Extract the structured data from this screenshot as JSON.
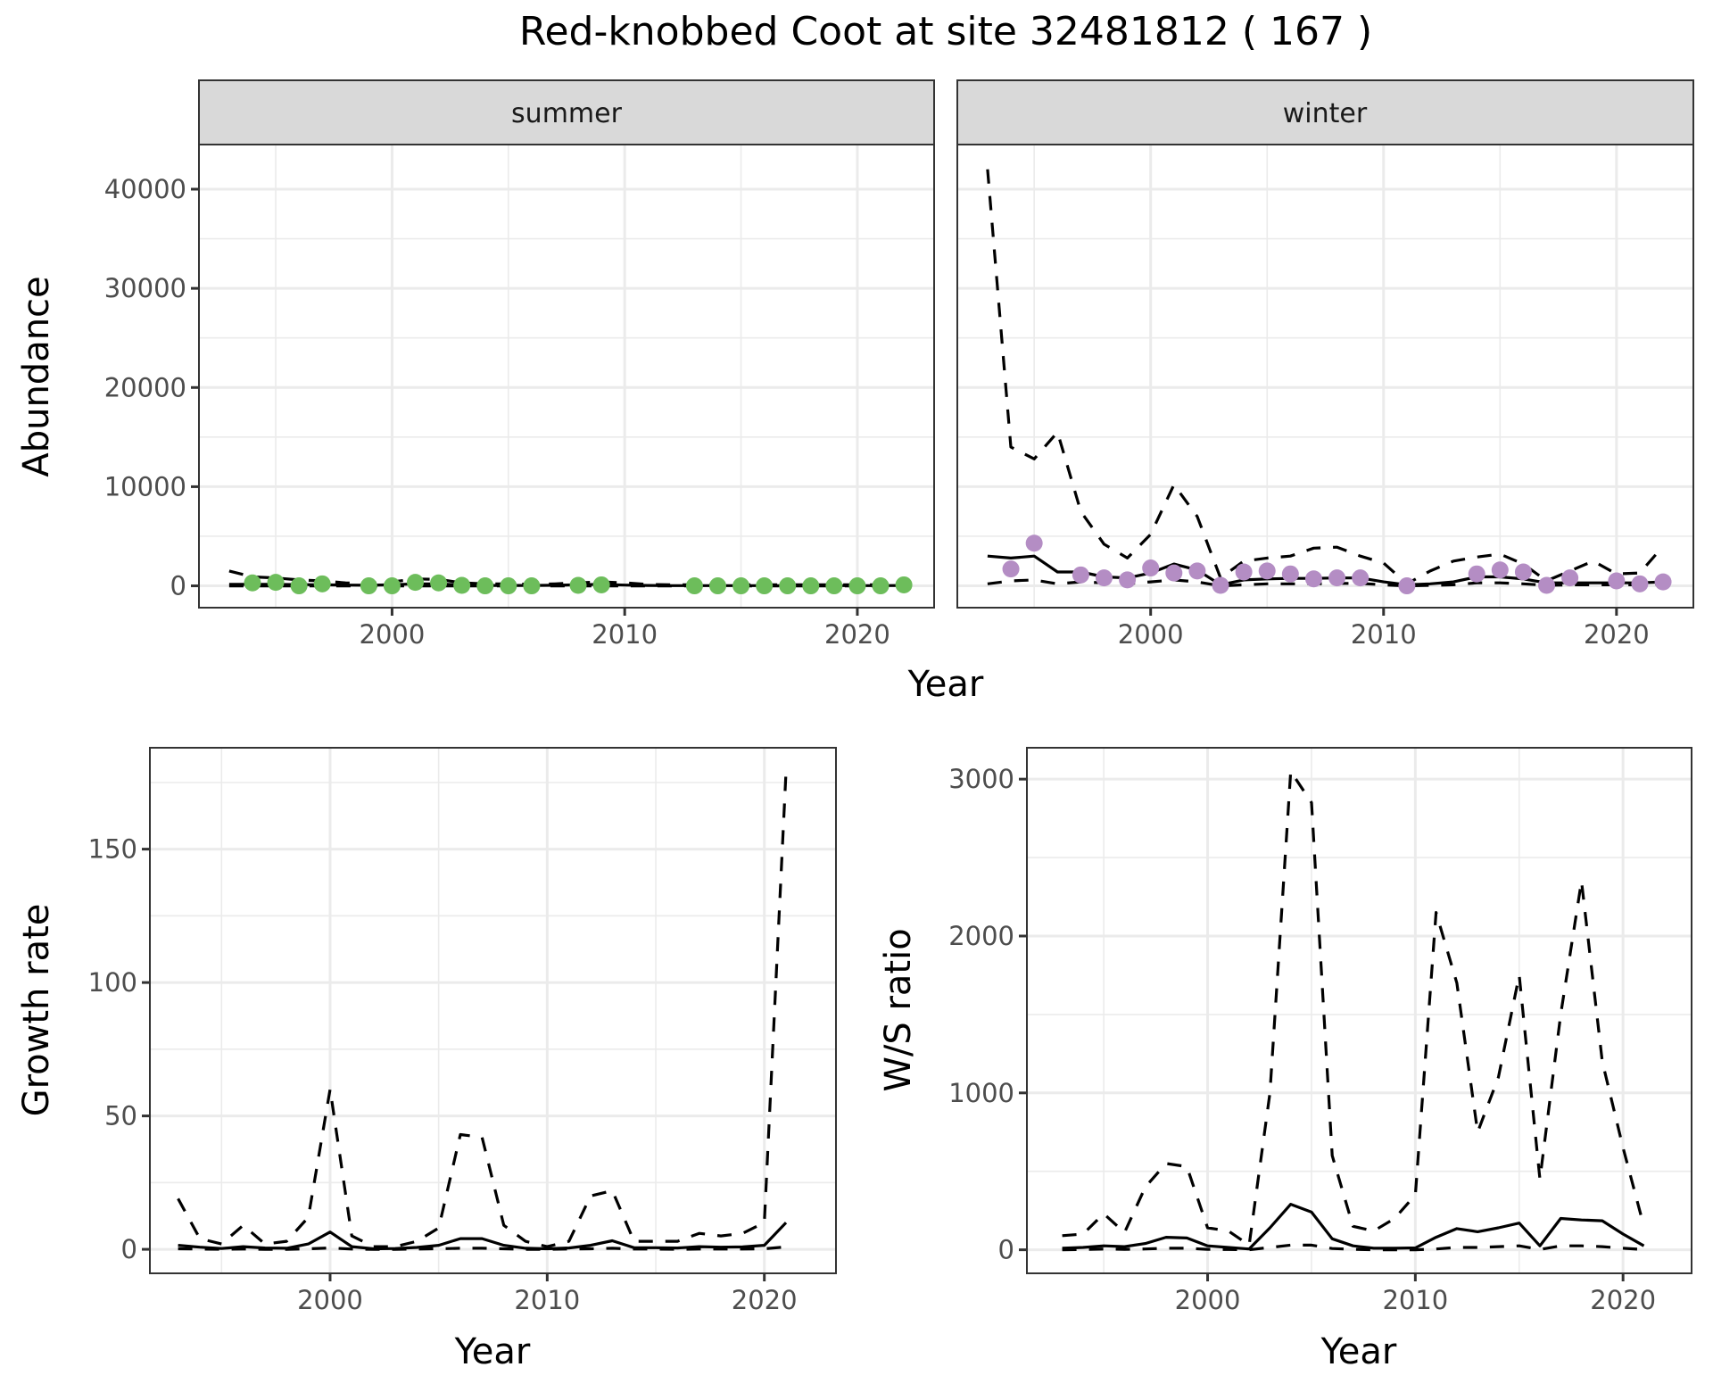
{
  "chart_data": [
    {
      "type": "line",
      "title": "Red-knobbed Coot at site 32481812 ( 167 )",
      "facet": "summer",
      "xlabel": "Year",
      "ylabel": "Abundance",
      "xlim": [
        1991.7,
        2023.3
      ],
      "ylim": [
        -2200,
        44500
      ],
      "xticks": [
        2000,
        2010,
        2020
      ],
      "yticks": [
        0,
        10000,
        20000,
        30000,
        40000
      ],
      "xtick_labels": [
        "2000",
        "2010",
        "2020"
      ],
      "ytick_labels": [
        "0",
        "10000",
        "20000",
        "30000",
        "40000"
      ],
      "grid": true,
      "point_color": "#6dbd5b",
      "x": [
        1993,
        1994,
        1995,
        1996,
        1997,
        1998,
        1999,
        2000,
        2001,
        2002,
        2003,
        2004,
        2005,
        2006,
        2007,
        2008,
        2009,
        2010,
        2011,
        2012,
        2013,
        2014,
        2015,
        2016,
        2017,
        2018,
        2019,
        2020,
        2021,
        2022
      ],
      "series": [
        {
          "name": "upper",
          "style": "dashed",
          "values": [
            1500,
            900,
            800,
            600,
            500,
            300,
            250,
            400,
            700,
            650,
            300,
            200,
            200,
            150,
            200,
            300,
            400,
            300,
            150,
            100,
            100,
            100,
            100,
            100,
            100,
            100,
            100,
            100,
            100,
            150
          ]
        },
        {
          "name": "mean",
          "style": "solid",
          "values": [
            150,
            150,
            150,
            120,
            100,
            80,
            60,
            100,
            200,
            200,
            80,
            40,
            40,
            40,
            60,
            100,
            150,
            80,
            40,
            20,
            20,
            20,
            20,
            20,
            20,
            20,
            20,
            20,
            20,
            40
          ]
        },
        {
          "name": "lower",
          "style": "dashed",
          "values": [
            0,
            0,
            0,
            0,
            0,
            0,
            0,
            0,
            0,
            0,
            0,
            0,
            0,
            0,
            0,
            0,
            0,
            0,
            0,
            0,
            0,
            0,
            0,
            0,
            0,
            0,
            0,
            0,
            0,
            0
          ]
        }
      ],
      "points": {
        "x": [
          1994,
          1995,
          1996,
          1997,
          1999,
          2000,
          2001,
          2002,
          2003,
          2004,
          2005,
          2006,
          2008,
          2009,
          2013,
          2014,
          2015,
          2016,
          2017,
          2018,
          2019,
          2020,
          2021,
          2022
        ],
        "y": [
          300,
          350,
          0,
          200,
          0,
          0,
          350,
          300,
          50,
          0,
          0,
          0,
          50,
          100,
          0,
          0,
          0,
          0,
          0,
          0,
          0,
          0,
          0,
          100
        ]
      }
    },
    {
      "type": "line",
      "facet": "winter",
      "xlabel": "Year",
      "ylabel": "Abundance",
      "xlim": [
        1991.7,
        2023.3
      ],
      "ylim": [
        -2200,
        44500
      ],
      "xticks": [
        2000,
        2010,
        2020
      ],
      "xtick_labels": [
        "2000",
        "2010",
        "2020"
      ],
      "grid": true,
      "point_color": "#b48dc4",
      "x": [
        1993,
        1994,
        1995,
        1996,
        1997,
        1998,
        1999,
        2000,
        2001,
        2002,
        2003,
        2004,
        2005,
        2006,
        2007,
        2008,
        2009,
        2010,
        2011,
        2012,
        2013,
        2014,
        2015,
        2016,
        2017,
        2018,
        2019,
        2020,
        2021,
        2022
      ],
      "series": [
        {
          "name": "upper",
          "style": "dashed",
          "values": [
            42000,
            14000,
            12800,
            15500,
            7500,
            4200,
            2800,
            5200,
            10200,
            7000,
            800,
            2500,
            2800,
            3000,
            3800,
            3900,
            3000,
            2300,
            200,
            1500,
            2500,
            2900,
            3200,
            2200,
            500,
            1500,
            2500,
            1200,
            1300,
            4000
          ]
        },
        {
          "name": "mean",
          "style": "solid",
          "values": [
            3000,
            2800,
            3000,
            1400,
            1400,
            900,
            800,
            1300,
            2200,
            1600,
            100,
            600,
            700,
            750,
            750,
            800,
            800,
            400,
            100,
            200,
            400,
            900,
            900,
            700,
            300,
            300,
            300,
            300,
            300,
            400
          ]
        },
        {
          "name": "lower",
          "style": "dashed",
          "values": [
            200,
            500,
            600,
            200,
            400,
            300,
            200,
            400,
            600,
            400,
            0,
            100,
            200,
            200,
            200,
            250,
            250,
            100,
            0,
            50,
            100,
            300,
            300,
            200,
            50,
            100,
            100,
            100,
            100,
            200
          ]
        }
      ],
      "points": {
        "x": [
          1994,
          1995,
          1997,
          1998,
          1999,
          2000,
          2001,
          2002,
          2003,
          2004,
          2005,
          2006,
          2007,
          2008,
          2009,
          2011,
          2014,
          2015,
          2016,
          2017,
          2018,
          2020,
          2021,
          2022
        ],
        "y": [
          1700,
          4300,
          1100,
          800,
          600,
          1800,
          1300,
          1500,
          50,
          1400,
          1500,
          1200,
          700,
          800,
          800,
          0,
          1200,
          1600,
          1400,
          50,
          800,
          500,
          200,
          400
        ]
      }
    },
    {
      "type": "line",
      "xlabel": "Year",
      "ylabel": "Growth rate",
      "xlim": [
        1991.7,
        2023.3
      ],
      "ylim": [
        -9,
        188
      ],
      "xticks": [
        2000,
        2010,
        2020
      ],
      "yticks": [
        0,
        50,
        100,
        150
      ],
      "xtick_labels": [
        "2000",
        "2010",
        "2020"
      ],
      "ytick_labels": [
        "0",
        "50",
        "100",
        "150"
      ],
      "grid": true,
      "x": [
        1993,
        1994,
        1995,
        1996,
        1997,
        1998,
        1999,
        2000,
        2001,
        2002,
        2003,
        2004,
        2005,
        2006,
        2007,
        2008,
        2009,
        2010,
        2011,
        2012,
        2013,
        2014,
        2015,
        2016,
        2017,
        2018,
        2019,
        2020,
        2021
      ],
      "series": [
        {
          "name": "upper",
          "style": "dashed",
          "values": [
            19,
            4,
            2,
            9,
            2,
            3,
            12,
            60,
            5,
            1,
            1,
            3,
            8,
            43,
            42,
            9,
            3,
            1,
            3,
            20,
            22,
            3,
            3,
            3,
            6,
            5,
            6,
            10,
            179
          ]
        },
        {
          "name": "mean",
          "style": "solid",
          "values": [
            1.5,
            0.8,
            0.3,
            1,
            0.5,
            0.4,
            2,
            6.5,
            1,
            0.2,
            0.3,
            0.7,
            1.5,
            4,
            4,
            1.5,
            0.4,
            0.2,
            0.5,
            1.5,
            3.2,
            0.6,
            0.6,
            0.5,
            1,
            0.8,
            0.9,
            1.5,
            10
          ]
        },
        {
          "name": "lower",
          "style": "dashed",
          "values": [
            0.2,
            0.1,
            0,
            0.1,
            0,
            0,
            0.2,
            0.5,
            0.1,
            0,
            0,
            0.1,
            0.2,
            0.4,
            0.4,
            0.2,
            0,
            0,
            0.1,
            0.2,
            0.4,
            0.1,
            0.1,
            0,
            0.1,
            0.1,
            0.1,
            0.2,
            0.9
          ]
        }
      ]
    },
    {
      "type": "line",
      "xlabel": "Year",
      "ylabel": "W/S ratio",
      "xlim": [
        1991.3,
        2023.3
      ],
      "ylim": [
        -150,
        3200
      ],
      "xticks": [
        2000,
        2010,
        2020
      ],
      "yticks": [
        0,
        1000,
        2000,
        3000
      ],
      "xtick_labels": [
        "2000",
        "2010",
        "2020"
      ],
      "ytick_labels": [
        "0",
        "1000",
        "2000",
        "3000"
      ],
      "grid": true,
      "x": [
        1993,
        1994,
        1995,
        1996,
        1997,
        1998,
        1999,
        2000,
        2001,
        2002,
        2003,
        2004,
        2005,
        2006,
        2007,
        2008,
        2009,
        2010,
        2011,
        2012,
        2013,
        2014,
        2015,
        2016,
        2017,
        2018,
        2019,
        2020,
        2021
      ],
      "series": [
        {
          "name": "upper",
          "style": "dashed",
          "values": [
            90,
            100,
            230,
            110,
            400,
            550,
            530,
            140,
            120,
            30,
            1000,
            3050,
            2850,
            600,
            150,
            120,
            200,
            350,
            2150,
            1700,
            750,
            1100,
            1750,
            450,
            1500,
            2350,
            1200,
            650,
            150
          ]
        },
        {
          "name": "mean",
          "style": "solid",
          "values": [
            10,
            15,
            25,
            20,
            40,
            80,
            75,
            25,
            15,
            5,
            140,
            290,
            240,
            70,
            25,
            10,
            10,
            12,
            80,
            135,
            115,
            140,
            170,
            25,
            200,
            190,
            185,
            100,
            25
          ]
        },
        {
          "name": "lower",
          "style": "dashed",
          "values": [
            0,
            2,
            5,
            3,
            5,
            10,
            10,
            3,
            2,
            0,
            15,
            30,
            30,
            8,
            3,
            0,
            0,
            0,
            5,
            15,
            15,
            20,
            25,
            2,
            25,
            25,
            20,
            10,
            2
          ]
        }
      ]
    }
  ]
}
